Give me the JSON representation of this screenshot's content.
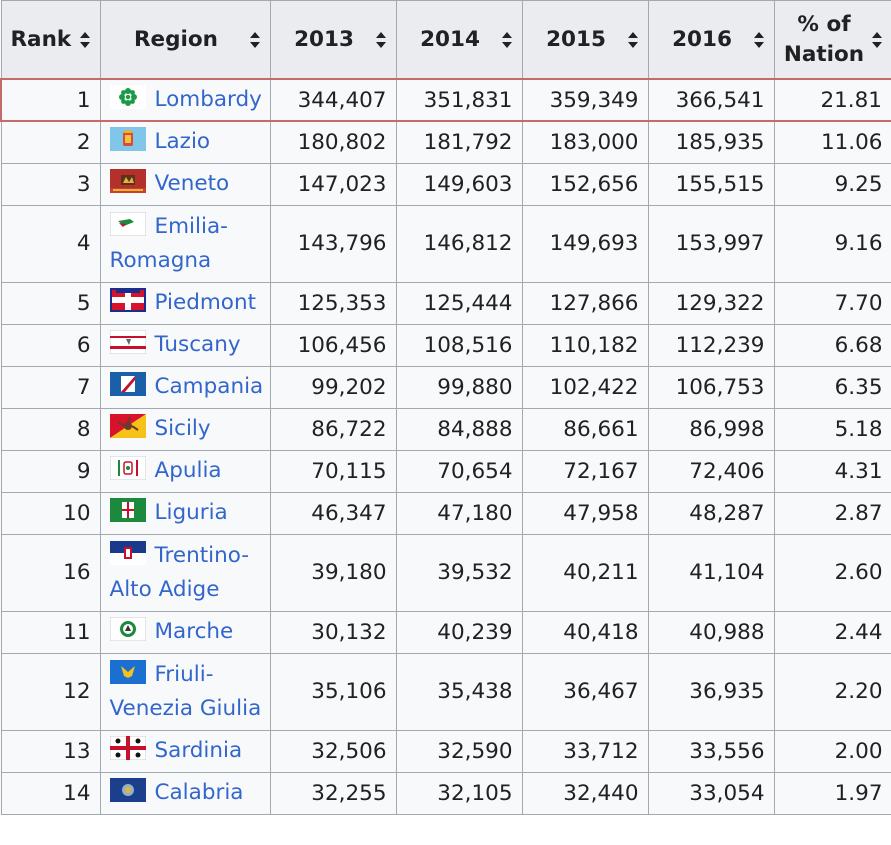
{
  "header": {
    "rank": "Rank",
    "region": "Region",
    "y2013": "2013",
    "y2014": "2014",
    "y2015": "2015",
    "y2016": "2016",
    "pct_line1": "% of",
    "pct_line2": "Nation"
  },
  "accent_colors": {
    "link": "#3366cc",
    "highlight_border": "#c86a6a",
    "header_bg": "#eaecf0"
  },
  "rows": [
    {
      "rank": "1",
      "region": "Lombardy",
      "v2013": "344,407",
      "v2014": "351,831",
      "v2015": "359,349",
      "v2016": "366,541",
      "pct": "21.81",
      "flag_icon": "lombardy-flag-icon"
    },
    {
      "rank": "2",
      "region": "Lazio",
      "v2013": "180,802",
      "v2014": "181,792",
      "v2015": "183,000",
      "v2016": "185,935",
      "pct": "11.06",
      "flag_icon": "lazio-flag-icon"
    },
    {
      "rank": "3",
      "region": "Veneto",
      "v2013": "147,023",
      "v2014": "149,603",
      "v2015": "152,656",
      "v2016": "155,515",
      "pct": "9.25",
      "flag_icon": "veneto-flag-icon"
    },
    {
      "rank": "4",
      "region": "Emilia-Romagna",
      "region_l1": "Emilia-",
      "region_l2": "Romagna",
      "v2013": "143,796",
      "v2014": "146,812",
      "v2015": "149,693",
      "v2016": "153,997",
      "pct": "9.16",
      "flag_icon": "emilia-romagna-flag-icon"
    },
    {
      "rank": "5",
      "region": "Piedmont",
      "v2013": "125,353",
      "v2014": "125,444",
      "v2015": "127,866",
      "v2016": "129,322",
      "pct": "7.70",
      "flag_icon": "piedmont-flag-icon"
    },
    {
      "rank": "6",
      "region": "Tuscany",
      "v2013": "106,456",
      "v2014": "108,516",
      "v2015": "110,182",
      "v2016": "112,239",
      "pct": "6.68",
      "flag_icon": "tuscany-flag-icon"
    },
    {
      "rank": "7",
      "region": "Campania",
      "v2013": "99,202",
      "v2014": "99,880",
      "v2015": "102,422",
      "v2016": "106,753",
      "pct": "6.35",
      "flag_icon": "campania-flag-icon"
    },
    {
      "rank": "8",
      "region": "Sicily",
      "v2013": "86,722",
      "v2014": "84,888",
      "v2015": "86,661",
      "v2016": "86,998",
      "pct": "5.18",
      "flag_icon": "sicily-flag-icon"
    },
    {
      "rank": "9",
      "region": "Apulia",
      "v2013": "70,115",
      "v2014": "70,654",
      "v2015": "72,167",
      "v2016": "72,406",
      "pct": "4.31",
      "flag_icon": "apulia-flag-icon"
    },
    {
      "rank": "10",
      "region": "Liguria",
      "v2013": "46,347",
      "v2014": "47,180",
      "v2015": "47,958",
      "v2016": "48,287",
      "pct": "2.87",
      "flag_icon": "liguria-flag-icon"
    },
    {
      "rank": "16",
      "region": "Trentino-Alto Adige",
      "region_l1": "Trentino-",
      "region_l2": "Alto Adige",
      "v2013": "39,180",
      "v2014": "39,532",
      "v2015": "40,211",
      "v2016": "41,104",
      "pct": "2.60",
      "flag_icon": "trentino-flag-icon"
    },
    {
      "rank": "11",
      "region": "Marche",
      "v2013": "30,132",
      "v2014": "40,239",
      "v2015": "40,418",
      "v2016": "40,988",
      "pct": "2.44",
      "flag_icon": "marche-flag-icon"
    },
    {
      "rank": "12",
      "region": "Friuli-Venezia Giulia",
      "region_l1": "Friuli-",
      "region_l2": "Venezia Giulia",
      "v2013": "35,106",
      "v2014": "35,438",
      "v2015": "36,467",
      "v2016": "36,935",
      "pct": "2.20",
      "flag_icon": "friuli-flag-icon"
    },
    {
      "rank": "13",
      "region": "Sardinia",
      "v2013": "32,506",
      "v2014": "32,590",
      "v2015": "33,712",
      "v2016": "33,556",
      "pct": "2.00",
      "flag_icon": "sardinia-flag-icon"
    },
    {
      "rank": "14",
      "region": "Calabria",
      "v2013": "32,255",
      "v2014": "32,105",
      "v2015": "32,440",
      "v2016": "33,054",
      "pct": "1.97",
      "flag_icon": "calabria-flag-icon"
    }
  ]
}
